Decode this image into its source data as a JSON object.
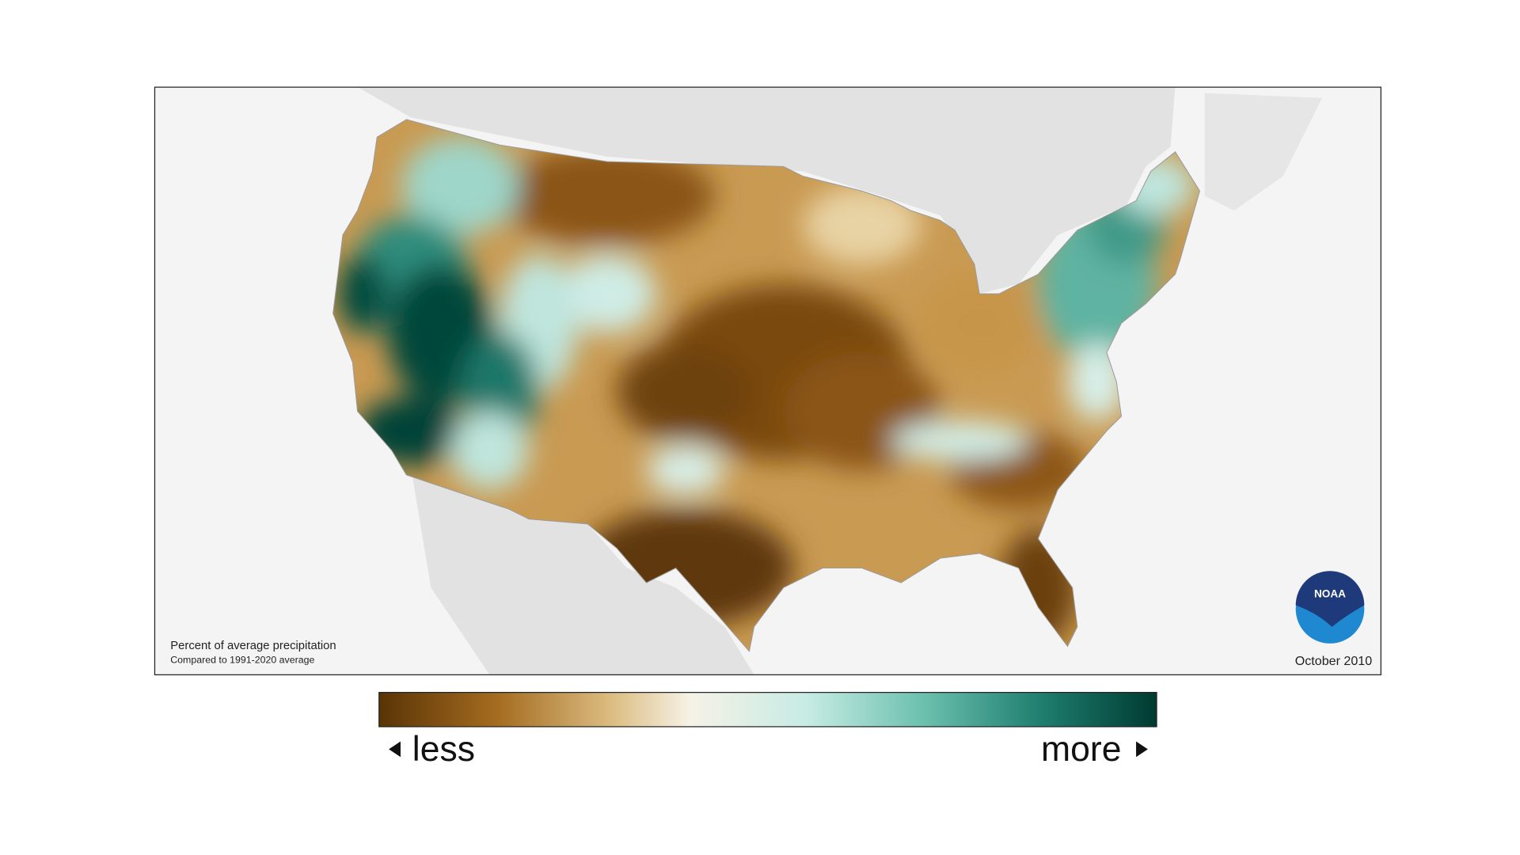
{
  "map": {
    "title": "Percent of average precipitation",
    "subtitle": "Compared to 1991-2020 average",
    "date": "October 2010",
    "logo": "NOAA"
  },
  "legend": {
    "low": "less",
    "high": "more"
  }
}
